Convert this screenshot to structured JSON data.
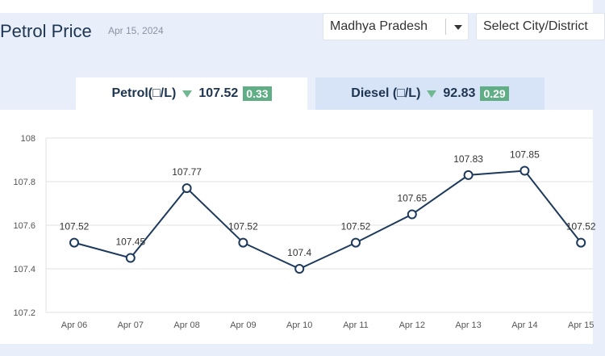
{
  "header": {
    "title": "Petrol Price",
    "date": "Apr 15, 2024"
  },
  "filters": {
    "state": "Madhya Pradesh",
    "city_placeholder": "Select City/District"
  },
  "tabs": [
    {
      "label": "Petrol(□/L)",
      "price": "107.52",
      "change": "0.33"
    },
    {
      "label": "Diesel (□/L)",
      "price": "92.83",
      "change": "0.29"
    }
  ],
  "colors": {
    "line": "#1d3a5c",
    "badge": "#5fae86",
    "grid": "#e2e2e2"
  },
  "chart_data": {
    "type": "line",
    "categories": [
      "Apr 06",
      "Apr 07",
      "Apr 08",
      "Apr 09",
      "Apr 10",
      "Apr 11",
      "Apr 12",
      "Apr 13",
      "Apr 14",
      "Apr 15"
    ],
    "values": [
      107.52,
      107.45,
      107.77,
      107.52,
      107.4,
      107.52,
      107.65,
      107.83,
      107.85,
      107.52
    ],
    "ylim": [
      107.2,
      108
    ],
    "yticks": [
      "107.2",
      "107.4",
      "107.6",
      "107.8",
      "108"
    ],
    "grid": true
  }
}
